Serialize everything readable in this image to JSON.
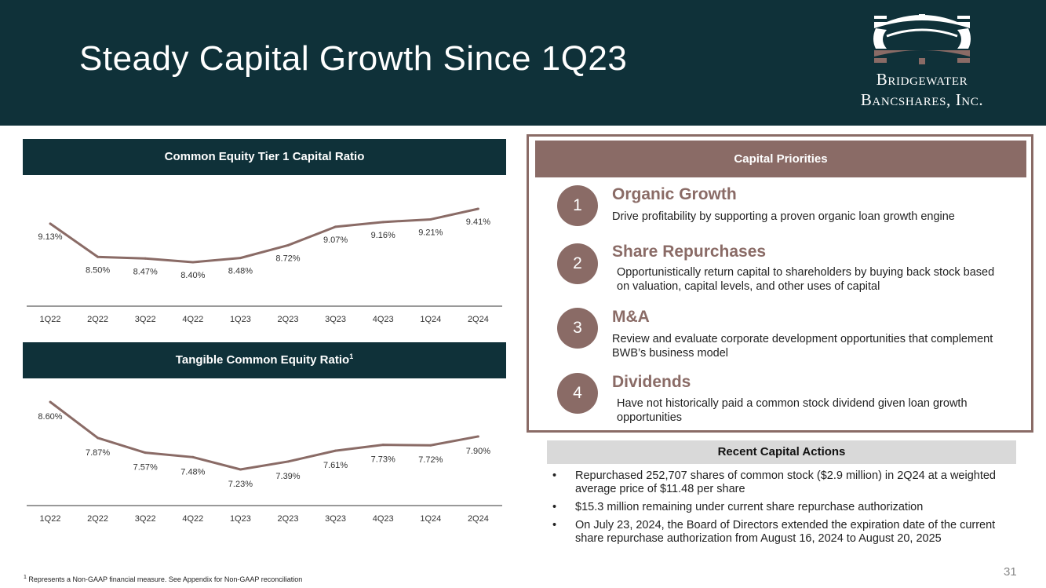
{
  "header": {
    "title": "Steady Capital Growth Since 1Q23"
  },
  "logo": {
    "line1": "Bridgewater",
    "line2": "Bancshares, Inc."
  },
  "chart_data": [
    {
      "type": "line",
      "title": "Common Equity Tier 1 Capital Ratio",
      "categories": [
        "1Q22",
        "2Q22",
        "3Q22",
        "4Q22",
        "1Q23",
        "2Q23",
        "3Q23",
        "4Q23",
        "1Q24",
        "2Q24"
      ],
      "values": [
        9.13,
        8.5,
        8.47,
        8.4,
        8.48,
        8.72,
        9.07,
        9.16,
        9.21,
        9.41
      ],
      "labels": [
        "9.13%",
        "8.50%",
        "8.47%",
        "8.40%",
        "8.48%",
        "8.72%",
        "9.07%",
        "9.16%",
        "9.21%",
        "9.41%"
      ],
      "color": "#8a6b66"
    },
    {
      "type": "line",
      "title": "Tangible Common Equity Ratio",
      "title_sup": "1",
      "categories": [
        "1Q22",
        "2Q22",
        "3Q22",
        "4Q22",
        "1Q23",
        "2Q23",
        "3Q23",
        "4Q23",
        "1Q24",
        "2Q24"
      ],
      "values": [
        8.6,
        7.87,
        7.57,
        7.48,
        7.23,
        7.39,
        7.61,
        7.73,
        7.72,
        7.9
      ],
      "labels": [
        "8.60%",
        "7.87%",
        "7.57%",
        "7.48%",
        "7.23%",
        "7.39%",
        "7.61%",
        "7.73%",
        "7.72%",
        "7.90%"
      ],
      "color": "#8a6b66"
    }
  ],
  "footnote": {
    "sup": "1",
    "text": "Represents a Non-GAAP financial measure. See Appendix for Non-GAAP reconciliation"
  },
  "priorities": {
    "heading": "Capital Priorities",
    "items": [
      {
        "num": "1",
        "title": "Organic Growth",
        "desc": "Drive profitability by supporting a proven organic loan growth engine"
      },
      {
        "num": "2",
        "title": "Share Repurchases",
        "desc": "Opportunistically return capital to shareholders by buying back stock based on valuation, capital levels, and other uses of capital"
      },
      {
        "num": "3",
        "title": "M&A",
        "desc": "Review and evaluate corporate development opportunities that complement BWB’s business model"
      },
      {
        "num": "4",
        "title": "Dividends",
        "desc": "Have not historically paid a common stock dividend given loan growth opportunities"
      }
    ]
  },
  "actions": {
    "heading": "Recent Capital Actions",
    "bullet": "•",
    "items": [
      "Repurchased 252,707 shares of common stock ($2.9 million) in 2Q24 at a weighted average price of $11.48 per share",
      "$15.3 million remaining under current share repurchase authorization",
      "On July 23, 2024, the Board of Directors extended the expiration date of the current share repurchase authorization from August 16, 2024 to August 20, 2025"
    ]
  },
  "page_number": "31"
}
